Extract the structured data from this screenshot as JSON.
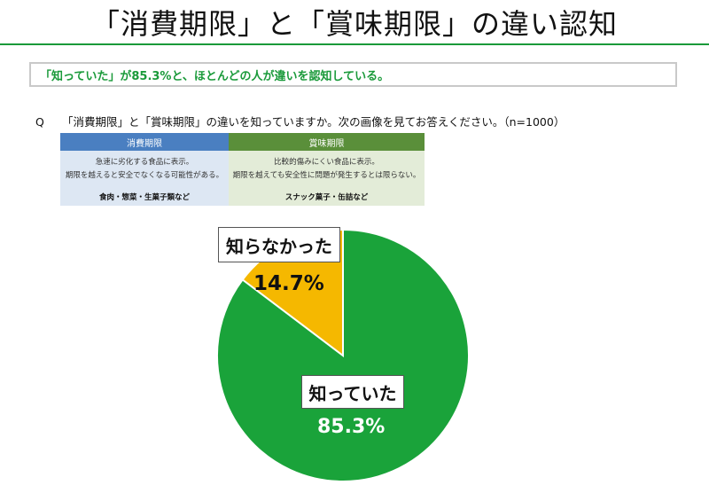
{
  "title": "「消費期限」と「賞味期限」の違い認知",
  "summary": "「知っていた」が85.3%と、ほとんどの人が違いを認知している。",
  "question": {
    "label": "Q",
    "text": "「消費期限」と「賞味期限」の違いを知っていますか。次の画像を見てお答えください。（n=1000）"
  },
  "info_table": {
    "expiry": {
      "header": "消費期限",
      "line1": "急速に劣化する食品に表示。",
      "line2": "期限を越えると安全でなくなる可能性がある。",
      "examples": "食肉・惣菜・生菓子類など"
    },
    "best_before": {
      "header": "賞味期限",
      "line1": "比較的傷みにくい食品に表示。",
      "line2": "期限を越えても安全性に問題が発生するとは限らない。",
      "examples": "スナック菓子・缶詰など"
    }
  },
  "colors": {
    "knew": "#1aa33a",
    "did_not_know": "#f5b800",
    "accent": "#1a9a3a"
  },
  "chart_data": {
    "type": "pie",
    "title": "",
    "categories": [
      "知っていた",
      "知らなかった"
    ],
    "values": [
      85.3,
      14.7
    ],
    "value_labels": [
      "85.3%",
      "14.7%"
    ],
    "start": "top, clockwise",
    "legend": "none"
  }
}
